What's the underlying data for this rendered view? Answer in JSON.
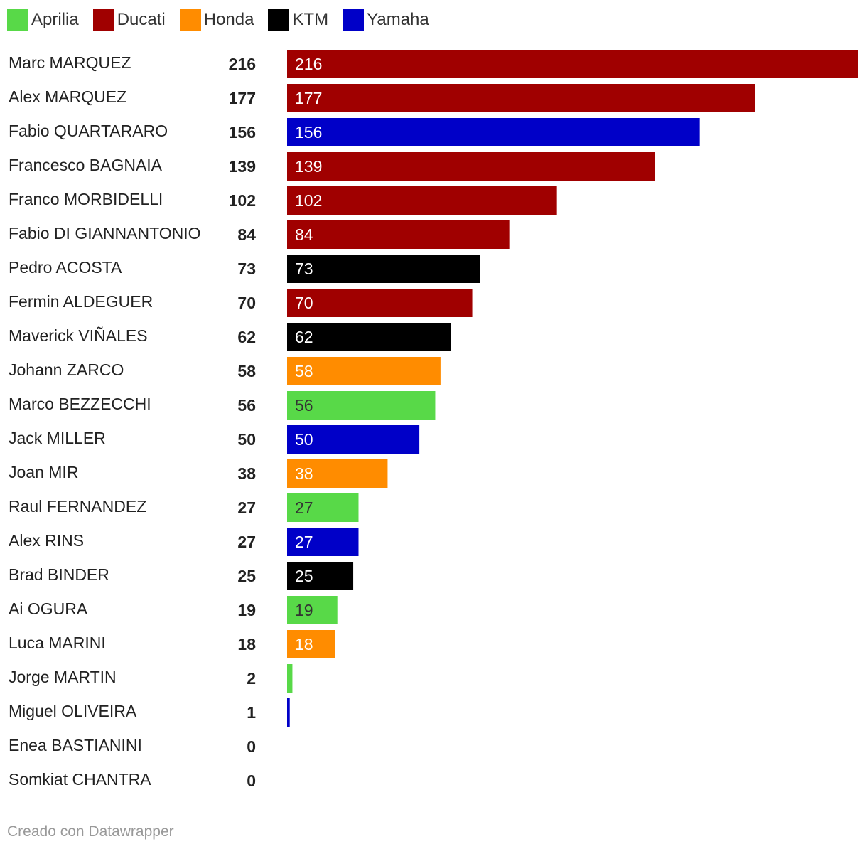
{
  "legend": [
    {
      "label": "Aprilia",
      "color": "#58d948"
    },
    {
      "label": "Ducati",
      "color": "#a00000"
    },
    {
      "label": "Honda",
      "color": "#ff8c00"
    },
    {
      "label": "KTM",
      "color": "#000000"
    },
    {
      "label": "Yamaha",
      "color": "#0000c8"
    }
  ],
  "credit": "Creado con Datawrapper",
  "chart_data": {
    "type": "bar",
    "orientation": "horizontal",
    "xlim": [
      0,
      216
    ],
    "grid": false,
    "legend_position": "top-left",
    "rows": [
      {
        "name": "Marc MARQUEZ",
        "value": 216,
        "brand": "Ducati"
      },
      {
        "name": "Alex MARQUEZ",
        "value": 177,
        "brand": "Ducati"
      },
      {
        "name": "Fabio QUARTARARO",
        "value": 156,
        "brand": "Yamaha"
      },
      {
        "name": "Francesco BAGNAIA",
        "value": 139,
        "brand": "Ducati"
      },
      {
        "name": "Franco MORBIDELLI",
        "value": 102,
        "brand": "Ducati"
      },
      {
        "name": "Fabio DI GIANNANTONIO",
        "value": 84,
        "brand": "Ducati"
      },
      {
        "name": "Pedro ACOSTA",
        "value": 73,
        "brand": "KTM"
      },
      {
        "name": "Fermin ALDEGUER",
        "value": 70,
        "brand": "Ducati"
      },
      {
        "name": "Maverick VIÑALES",
        "value": 62,
        "brand": "KTM"
      },
      {
        "name": "Johann ZARCO",
        "value": 58,
        "brand": "Honda"
      },
      {
        "name": "Marco BEZZECCHI",
        "value": 56,
        "brand": "Aprilia"
      },
      {
        "name": "Jack MILLER",
        "value": 50,
        "brand": "Yamaha"
      },
      {
        "name": "Joan MIR",
        "value": 38,
        "brand": "Honda"
      },
      {
        "name": "Raul FERNANDEZ",
        "value": 27,
        "brand": "Aprilia"
      },
      {
        "name": "Alex RINS",
        "value": 27,
        "brand": "Yamaha"
      },
      {
        "name": "Brad BINDER",
        "value": 25,
        "brand": "KTM"
      },
      {
        "name": "Ai OGURA",
        "value": 19,
        "brand": "Aprilia"
      },
      {
        "name": "Luca MARINI",
        "value": 18,
        "brand": "Honda"
      },
      {
        "name": "Jorge MARTIN",
        "value": 2,
        "brand": "Aprilia"
      },
      {
        "name": "Miguel OLIVEIRA",
        "value": 1,
        "brand": "Yamaha"
      },
      {
        "name": "Enea BASTIANINI",
        "value": 0,
        "brand": "KTM"
      },
      {
        "name": "Somkiat CHANTRA",
        "value": 0,
        "brand": "Honda"
      }
    ]
  }
}
